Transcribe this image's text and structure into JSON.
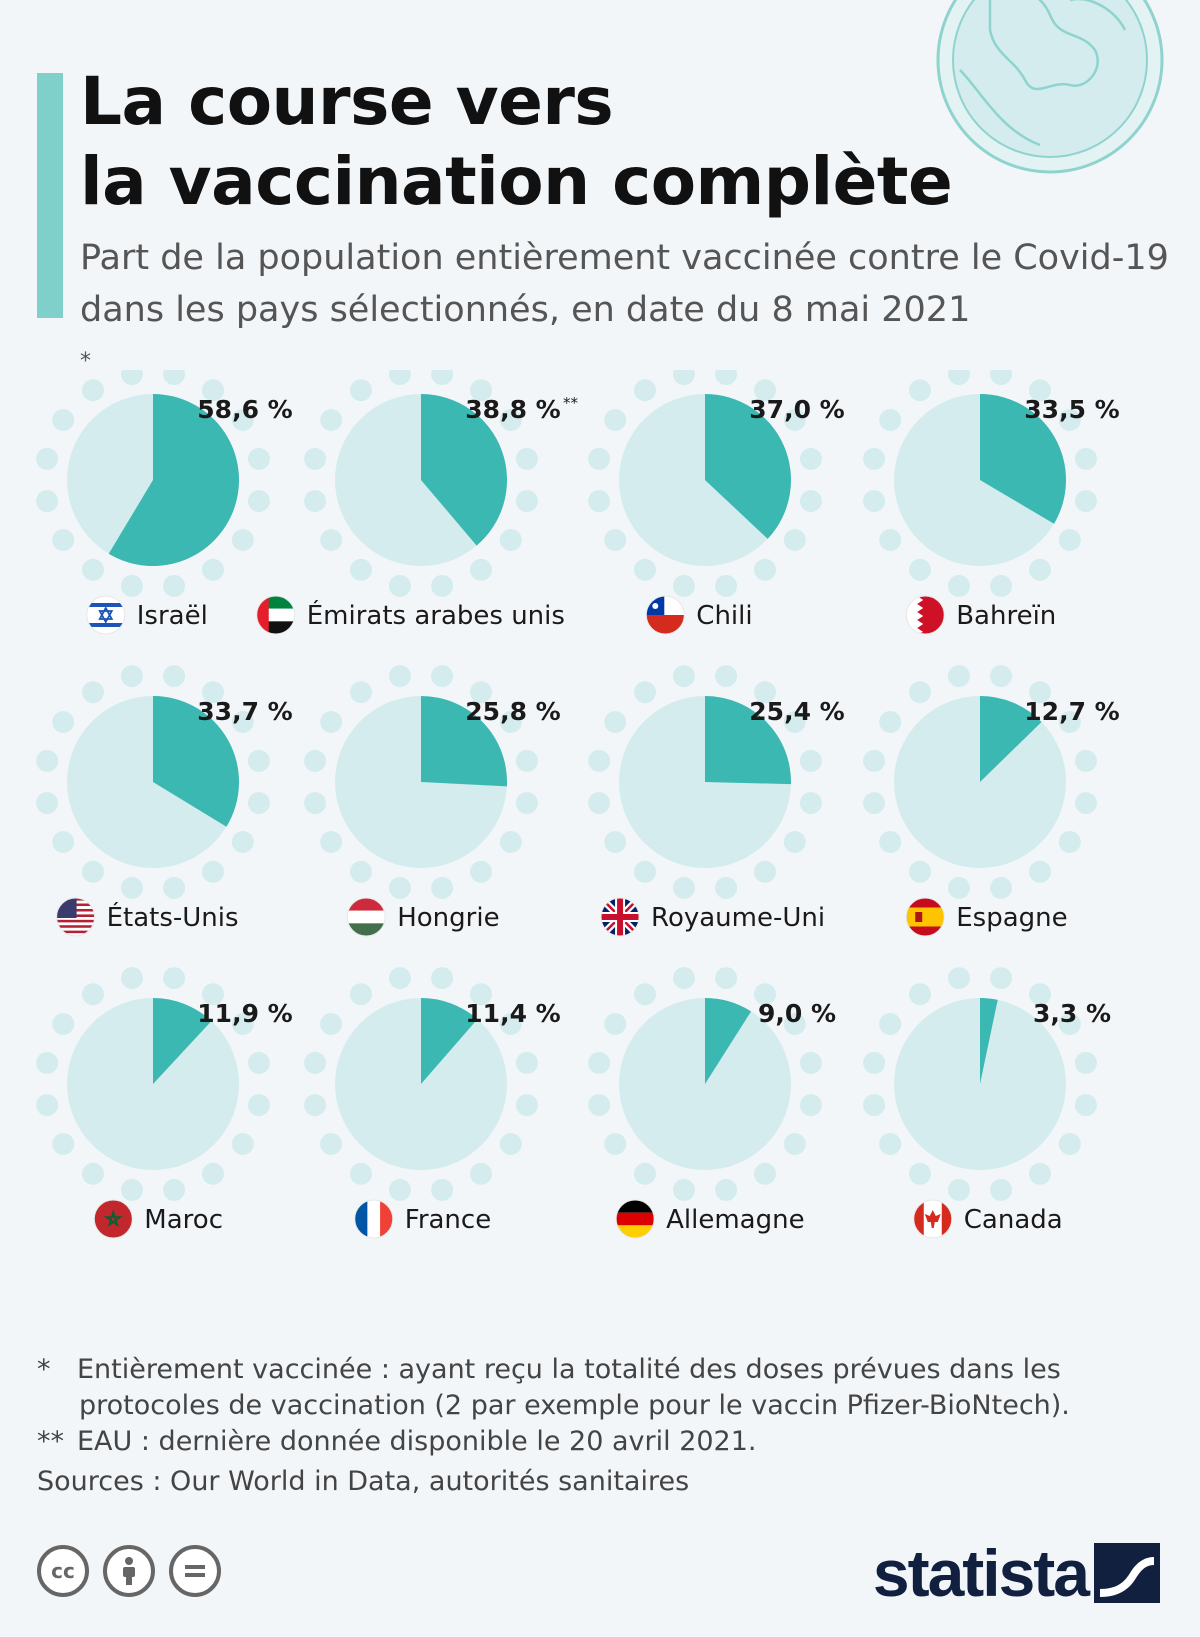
{
  "header": {
    "title_line1": "La course vers",
    "title_line2": "la vaccination complète",
    "subtitle_line1": "Part de la population entièrement vaccinée contre le Covid-19",
    "subtitle_line2": "dans les pays sélectionnés, en date du 8 mai 2021",
    "subtitle_mark": "*"
  },
  "colors": {
    "filled": "#3bb8b2",
    "empty": "#d4ecee",
    "accent": "#7fd0cb",
    "background": "#f3f6f9",
    "brand": "#12203f"
  },
  "chart_data": {
    "type": "pie",
    "unit": "%",
    "items": [
      {
        "country": "Israël",
        "value": 58.6,
        "label": "58,6 %",
        "note": "",
        "flag": "israel-flag"
      },
      {
        "country": "Émirats arabes unis",
        "value": 38.8,
        "label": "38,8 %",
        "note": "**",
        "flag": "uae-flag"
      },
      {
        "country": "Chili",
        "value": 37.0,
        "label": "37,0 %",
        "note": "",
        "flag": "chile-flag"
      },
      {
        "country": "Bahreïn",
        "value": 33.5,
        "label": "33,5 %",
        "note": "",
        "flag": "bahrain-flag"
      },
      {
        "country": "États-Unis",
        "value": 33.7,
        "label": "33,7 %",
        "note": "",
        "flag": "usa-flag"
      },
      {
        "country": "Hongrie",
        "value": 25.8,
        "label": "25,8 %",
        "note": "",
        "flag": "hungary-flag"
      },
      {
        "country": "Royaume-Uni",
        "value": 25.4,
        "label": "25,4 %",
        "note": "",
        "flag": "uk-flag"
      },
      {
        "country": "Espagne",
        "value": 12.7,
        "label": "12,7 %",
        "note": "",
        "flag": "spain-flag"
      },
      {
        "country": "Maroc",
        "value": 11.9,
        "label": "11,9 %",
        "note": "",
        "flag": "morocco-flag"
      },
      {
        "country": "France",
        "value": 11.4,
        "label": "11,4 %",
        "note": "",
        "flag": "france-flag"
      },
      {
        "country": "Allemagne",
        "value": 9.0,
        "label": "9,0 %",
        "note": "",
        "flag": "germany-flag"
      },
      {
        "country": "Canada",
        "value": 3.3,
        "label": "3,3 %",
        "note": "",
        "flag": "canada-flag"
      }
    ]
  },
  "footnotes": {
    "note1_mark": "*",
    "note1_line1": "Entièrement vaccinée : ayant reçu la totalité des doses prévues dans les",
    "note1_line2": "protocoles de vaccination (2 par exemple pour le vaccin Pfizer-BioNtech).",
    "note2_mark": "**",
    "note2": "EAU : dernière donnée disponible le 20 avril 2021.",
    "sources": "Sources : Our World in Data, autorités sanitaires"
  },
  "brand": {
    "name": "statista"
  },
  "license_icons": [
    "cc-icon",
    "attribution-icon",
    "no-derivatives-icon"
  ]
}
